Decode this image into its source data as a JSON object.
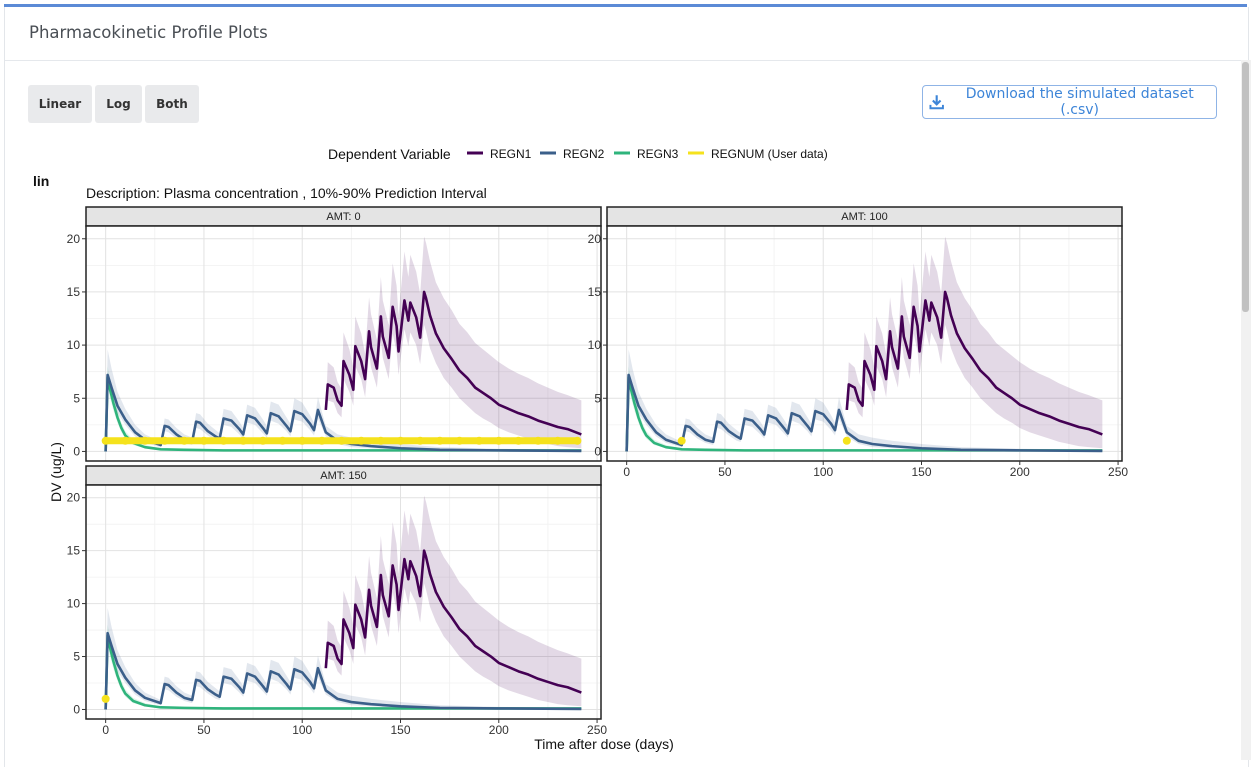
{
  "page": {
    "title": "Pharmacokinetic Profile Plots",
    "buttons": {
      "linear": "Linear",
      "log": "Log",
      "both": "Both"
    },
    "download_label": "Download the simulated dataset (.csv)",
    "download_icon": "download-icon"
  },
  "chart_data": {
    "type": "line",
    "plot_tag": "lin",
    "legend_title": "Dependent Variable",
    "legend_position": "top",
    "description": "Description:  Plasma concentration , 10%-90% Prediction Interval",
    "xlabel": "Time after dose (days)",
    "ylabel": "DV (ug/L)",
    "xlim": [
      0,
      250
    ],
    "ylim": [
      0,
      21
    ],
    "xticks": [
      "0",
      "50",
      "100",
      "150",
      "200",
      "250"
    ],
    "yticks": [
      "0",
      "5",
      "10",
      "15",
      "20"
    ],
    "grid": true,
    "series": [
      {
        "name": "REGN1",
        "color": "#440154"
      },
      {
        "name": "REGN2",
        "color": "#3b5f8a"
      },
      {
        "name": "REGN3",
        "color": "#2fb47c"
      },
      {
        "name": "REGNUM (User data)",
        "color": "#f5e21c"
      }
    ],
    "panels": [
      {
        "label": "AMT: 0",
        "user_points": [
          [
            0,
            1
          ],
          [
            10,
            1
          ],
          [
            20,
            1
          ],
          [
            30,
            1
          ],
          [
            40,
            1
          ],
          [
            50,
            1
          ],
          [
            60,
            1
          ],
          [
            70,
            1
          ],
          [
            80,
            1
          ],
          [
            90,
            1
          ],
          [
            100,
            1
          ],
          [
            110,
            1
          ],
          [
            120,
            1
          ],
          [
            130,
            1
          ],
          [
            140,
            1
          ],
          [
            150,
            1
          ],
          [
            160,
            1
          ],
          [
            170,
            1
          ],
          [
            180,
            1
          ],
          [
            190,
            1
          ],
          [
            200,
            1
          ],
          [
            210,
            1
          ],
          [
            220,
            1
          ],
          [
            230,
            1
          ],
          [
            240,
            1
          ]
        ]
      },
      {
        "label": "AMT: 100",
        "user_points": [
          [
            28,
            1
          ],
          [
            112,
            1
          ]
        ]
      },
      {
        "label": "AMT: 150",
        "user_points": [
          [
            0,
            1
          ]
        ]
      }
    ],
    "regn3": {
      "x": [
        0,
        1,
        2,
        4,
        6,
        8,
        10,
        14,
        20,
        28,
        40,
        60,
        80,
        100,
        150,
        200,
        242
      ],
      "y": [
        0,
        7.0,
        6.0,
        4.5,
        3.2,
        2.2,
        1.5,
        0.8,
        0.4,
        0.2,
        0.15,
        0.1,
        0.1,
        0.1,
        0.1,
        0.1,
        0.1
      ],
      "lower": [
        0,
        6.2,
        5.2,
        3.8,
        2.7,
        1.8,
        1.2,
        0.6,
        0.3,
        0.15,
        0.1,
        0.08,
        0.08,
        0.08,
        0.08,
        0.08,
        0.08
      ],
      "upper": [
        0,
        8.0,
        7.0,
        5.4,
        3.9,
        2.7,
        1.9,
        1.1,
        0.6,
        0.3,
        0.2,
        0.15,
        0.15,
        0.15,
        0.15,
        0.15,
        0.15
      ]
    },
    "regn2": {
      "x": [
        0,
        1,
        3,
        6,
        10,
        15,
        20,
        28,
        30,
        32,
        36,
        40,
        44,
        46,
        48,
        52,
        56,
        58,
        60,
        64,
        68,
        70,
        72,
        76,
        80,
        82,
        84,
        88,
        92,
        94,
        96,
        100,
        104,
        106,
        108,
        112,
        118,
        125,
        135,
        150,
        170,
        200,
        242
      ],
      "y": [
        0,
        7.2,
        6.0,
        4.3,
        3.0,
        1.8,
        1.1,
        0.6,
        2.4,
        2.3,
        1.6,
        1.1,
        0.9,
        2.8,
        2.7,
        1.9,
        1.4,
        1.2,
        3.1,
        2.9,
        2.1,
        1.6,
        3.4,
        3.1,
        2.2,
        1.7,
        3.6,
        3.3,
        2.4,
        1.9,
        3.8,
        3.5,
        2.6,
        2.0,
        3.9,
        1.8,
        1.0,
        0.7,
        0.5,
        0.3,
        0.15,
        0.1,
        0.05
      ],
      "lower": [
        0,
        6.3,
        5.2,
        3.6,
        2.5,
        1.4,
        0.8,
        0.4,
        1.9,
        1.8,
        1.2,
        0.8,
        0.6,
        2.2,
        2.1,
        1.5,
        1.0,
        0.9,
        2.5,
        2.3,
        1.6,
        1.2,
        2.7,
        2.5,
        1.7,
        1.3,
        2.9,
        2.6,
        1.9,
        1.4,
        3.0,
        2.8,
        2.0,
        1.5,
        3.1,
        1.4,
        0.7,
        0.4,
        0.3,
        0.15,
        0.08,
        0.05,
        0.02
      ],
      "upper": [
        0,
        9.6,
        7.8,
        5.6,
        4.0,
        2.5,
        1.6,
        0.9,
        3.1,
        3.0,
        2.2,
        1.6,
        1.3,
        3.6,
        3.5,
        2.6,
        2.0,
        1.7,
        4.0,
        3.8,
        2.8,
        2.2,
        4.4,
        4.1,
        3.0,
        2.4,
        4.7,
        4.4,
        3.2,
        2.6,
        5.0,
        4.6,
        3.4,
        2.7,
        5.1,
        2.4,
        1.6,
        1.3,
        1.0,
        0.7,
        0.4,
        0.25,
        0.15
      ]
    },
    "regn1": {
      "x": [
        112,
        113,
        116,
        118,
        120,
        121,
        124,
        126,
        127,
        130,
        132,
        134,
        135,
        138,
        140,
        141,
        144,
        146,
        148,
        149,
        152,
        154,
        155,
        158,
        160,
        162,
        163,
        165,
        168,
        172,
        176,
        180,
        184,
        188,
        192,
        196,
        200,
        205,
        210,
        215,
        220,
        225,
        230,
        235,
        242
      ],
      "y": [
        3.9,
        6.3,
        6.0,
        4.8,
        4.3,
        8.5,
        7.2,
        5.8,
        9.9,
        8.5,
        6.8,
        11.3,
        9.8,
        7.8,
        12.7,
        10.8,
        8.8,
        13.6,
        11.8,
        9.4,
        14.2,
        12.3,
        14.0,
        12.6,
        10.7,
        15.0,
        14.4,
        12.8,
        11.1,
        9.7,
        8.7,
        7.6,
        6.9,
        6.0,
        5.5,
        5.0,
        4.4,
        4.0,
        3.6,
        3.3,
        2.9,
        2.6,
        2.3,
        2.1,
        1.6
      ],
      "lower": [
        3.9,
        4.8,
        4.6,
        3.6,
        3.2,
        6.8,
        5.6,
        4.3,
        8.0,
        6.8,
        5.1,
        9.3,
        7.9,
        6.0,
        10.4,
        8.8,
        6.8,
        11.1,
        9.4,
        7.2,
        11.5,
        9.9,
        11.2,
        10.0,
        8.2,
        11.9,
        11.3,
        9.7,
        8.3,
        6.9,
        6.0,
        5.0,
        4.3,
        3.6,
        3.1,
        2.7,
        2.2,
        1.8,
        1.5,
        1.2,
        0.9,
        0.7,
        0.5,
        0.4,
        0.3
      ],
      "upper": [
        3.9,
        8.4,
        7.9,
        6.5,
        5.9,
        11.2,
        9.6,
        7.9,
        12.7,
        11.1,
        9.2,
        14.5,
        12.9,
        10.5,
        16.4,
        14.2,
        11.9,
        17.7,
        15.6,
        12.8,
        18.8,
        16.4,
        18.5,
        16.9,
        14.8,
        20.2,
        19.6,
        17.9,
        15.9,
        14.4,
        13.3,
        12.0,
        11.2,
        10.2,
        9.6,
        9.0,
        8.4,
        7.8,
        7.3,
        6.9,
        6.4,
        6.0,
        5.6,
        5.3,
        4.8
      ]
    }
  }
}
